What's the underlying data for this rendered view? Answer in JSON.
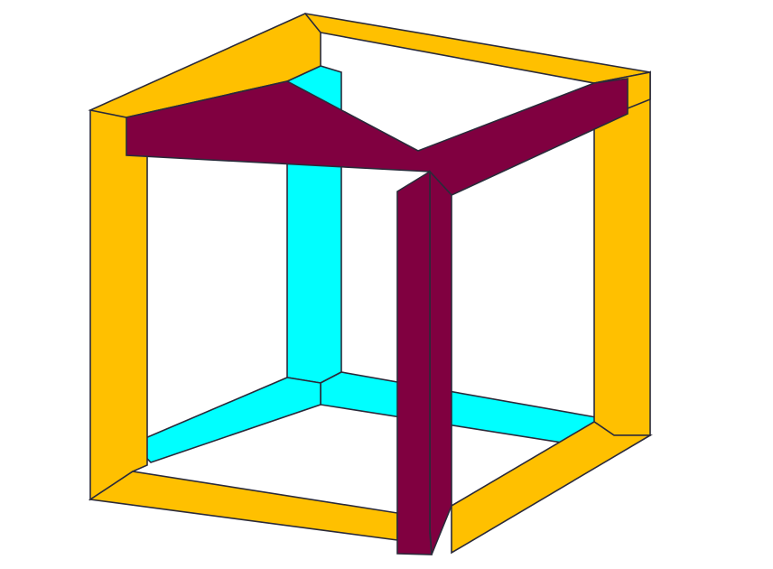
{
  "figure": {
    "kind": "impossible-cube-illustration",
    "colors": {
      "background": "#ffffff",
      "outer_frame": "#FFC000",
      "inner_frame": "#00FFFF",
      "front_beams": "#800040",
      "outline": "#2a2a3a"
    },
    "beams": [
      {
        "id": "cube-back-left-post",
        "role": "inner_frame"
      },
      {
        "id": "cube-back-bottom-beam",
        "role": "inner_frame"
      },
      {
        "id": "cube-back-floor-edge",
        "role": "inner_frame"
      },
      {
        "id": "cube-left-post",
        "role": "outer_frame"
      },
      {
        "id": "cube-left-bottom-beam",
        "role": "outer_frame"
      },
      {
        "id": "cube-right-post",
        "role": "outer_frame"
      },
      {
        "id": "cube-right-bottom-beam",
        "role": "outer_frame"
      },
      {
        "id": "cube-top-back-beam",
        "role": "outer_frame"
      },
      {
        "id": "cube-top-left-beam",
        "role": "outer_frame"
      },
      {
        "id": "cube-top-right-beam",
        "role": "outer_frame"
      },
      {
        "id": "cube-front-top-beam",
        "role": "front_beams"
      },
      {
        "id": "cube-front-right-beam",
        "role": "front_beams"
      },
      {
        "id": "cube-front-post",
        "role": "front_beams"
      }
    ]
  }
}
